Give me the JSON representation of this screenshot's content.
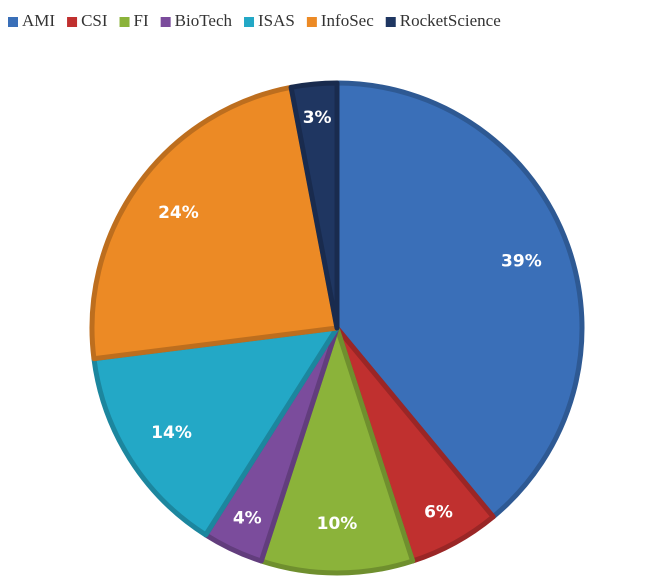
{
  "chart_data": {
    "type": "pie",
    "categories": [
      "AMI",
      "CSI",
      "FI",
      "BioTech",
      "ISAS",
      "InfoSec",
      "RocketScience"
    ],
    "values": [
      39,
      6,
      10,
      4,
      14,
      24,
      3
    ],
    "value_labels": [
      "39%",
      "6%",
      "10%",
      "4%",
      "14%",
      "24%",
      "3%"
    ],
    "colors": [
      "#3a6fb8",
      "#c0302f",
      "#8bb33a",
      "#7b4c9c",
      "#23a8c6",
      "#ec8a25",
      "#1f3661"
    ],
    "legend": "top"
  }
}
